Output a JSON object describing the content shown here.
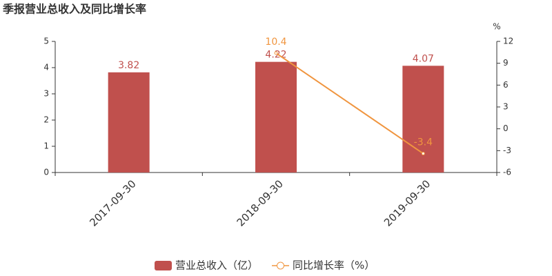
{
  "chart_data": {
    "type": "bar",
    "title": "季报营业总收入及同比增长率",
    "categories": [
      "2017-09-30",
      "2018-09-30",
      "2019-09-30"
    ],
    "series": [
      {
        "name": "营业总收入（亿）",
        "type": "bar",
        "color": "#c0504d",
        "values": [
          3.82,
          4.22,
          4.07
        ]
      },
      {
        "name": "同比增长率（%）",
        "type": "line",
        "axis": "y2",
        "color": "#f0953f",
        "values": [
          null,
          10.4,
          -3.4
        ]
      }
    ],
    "ylim": [
      0,
      5
    ],
    "yticks": [
      0,
      1,
      2,
      3,
      4,
      5
    ],
    "y2lim": [
      -6,
      12
    ],
    "y2ticks": [
      -6,
      -3,
      0,
      3,
      6,
      9,
      12
    ],
    "y2label": "%"
  }
}
